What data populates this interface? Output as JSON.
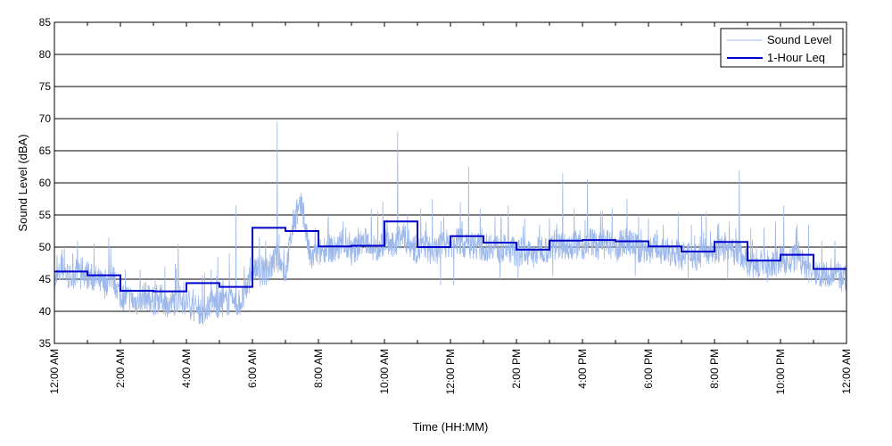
{
  "chart_data": {
    "type": "line",
    "title": "",
    "xlabel": "Time (HH:MM)",
    "ylabel": "Sound Level (dBA)",
    "ylim": [
      35,
      85
    ],
    "xlim": [
      0,
      24
    ],
    "yticks": [
      35,
      40,
      45,
      50,
      55,
      60,
      65,
      70,
      75,
      80,
      85
    ],
    "xticks": [
      {
        "hour": 0,
        "label": "12:00 AM"
      },
      {
        "hour": 2,
        "label": "2:00 AM"
      },
      {
        "hour": 4,
        "label": "4:00 AM"
      },
      {
        "hour": 6,
        "label": "6:00 AM"
      },
      {
        "hour": 8,
        "label": "8:00 AM"
      },
      {
        "hour": 10,
        "label": "10:00 AM"
      },
      {
        "hour": 12,
        "label": "12:00 PM"
      },
      {
        "hour": 14,
        "label": "2:00 PM"
      },
      {
        "hour": 16,
        "label": "4:00 PM"
      },
      {
        "hour": 18,
        "label": "6:00 PM"
      },
      {
        "hour": 20,
        "label": "8:00 PM"
      },
      {
        "hour": 22,
        "label": "10:00 PM"
      },
      {
        "hour": 24,
        "label": "12:00 AM"
      }
    ],
    "minor_xticks_hours": [
      1,
      3,
      5,
      7,
      9,
      11,
      13,
      15,
      17,
      19,
      21,
      23
    ],
    "grid": {
      "y": true,
      "x": false
    },
    "legend": {
      "placement": "top-right"
    },
    "series": [
      {
        "name": "Sound Level",
        "color": "#9db8ea",
        "style": "thin-line",
        "points": [
          [
            0.0,
            44.5
          ],
          [
            0.25,
            46.5
          ],
          [
            0.5,
            45.0
          ],
          [
            0.75,
            47.0
          ],
          [
            1.0,
            45.5
          ],
          [
            1.25,
            45.0
          ],
          [
            1.5,
            44.0
          ],
          [
            1.75,
            45.5
          ],
          [
            2.0,
            42.5
          ],
          [
            2.25,
            42.0
          ],
          [
            2.5,
            41.5
          ],
          [
            2.75,
            42.5
          ],
          [
            3.0,
            41.5
          ],
          [
            3.25,
            42.0
          ],
          [
            3.5,
            41.0
          ],
          [
            3.75,
            42.0
          ],
          [
            4.0,
            41.5
          ],
          [
            4.25,
            40.5
          ],
          [
            4.5,
            40.0
          ],
          [
            4.75,
            41.5
          ],
          [
            5.0,
            41.0
          ],
          [
            5.25,
            41.5
          ],
          [
            5.5,
            41.0
          ],
          [
            5.75,
            42.0
          ],
          [
            6.0,
            47.0
          ],
          [
            6.25,
            46.0
          ],
          [
            6.5,
            46.5
          ],
          [
            6.75,
            48.5
          ],
          [
            7.0,
            46.0
          ],
          [
            7.25,
            54.0
          ],
          [
            7.5,
            56.5
          ],
          [
            7.75,
            48.0
          ],
          [
            8.0,
            49.0
          ],
          [
            8.25,
            50.0
          ],
          [
            8.5,
            49.5
          ],
          [
            8.75,
            50.5
          ],
          [
            9.0,
            49.0
          ],
          [
            9.25,
            50.5
          ],
          [
            9.5,
            51.0
          ],
          [
            9.75,
            49.5
          ],
          [
            10.0,
            51.0
          ],
          [
            10.25,
            50.0
          ],
          [
            10.5,
            52.0
          ],
          [
            10.75,
            50.5
          ],
          [
            11.0,
            49.5
          ],
          [
            11.25,
            50.0
          ],
          [
            11.5,
            49.0
          ],
          [
            11.75,
            50.5
          ],
          [
            12.0,
            50.5
          ],
          [
            12.25,
            51.0
          ],
          [
            12.5,
            50.0
          ],
          [
            12.75,
            50.5
          ],
          [
            13.0,
            49.5
          ],
          [
            13.25,
            50.5
          ],
          [
            13.5,
            49.5
          ],
          [
            13.75,
            50.0
          ],
          [
            14.0,
            49.0
          ],
          [
            14.25,
            49.5
          ],
          [
            14.5,
            48.5
          ],
          [
            14.75,
            50.0
          ],
          [
            15.0,
            49.5
          ],
          [
            15.25,
            50.5
          ],
          [
            15.5,
            50.0
          ],
          [
            15.75,
            50.5
          ],
          [
            16.0,
            50.0
          ],
          [
            16.25,
            51.0
          ],
          [
            16.5,
            50.0
          ],
          [
            16.75,
            50.5
          ],
          [
            17.0,
            49.5
          ],
          [
            17.25,
            51.0
          ],
          [
            17.5,
            50.5
          ],
          [
            17.75,
            49.5
          ],
          [
            18.0,
            49.5
          ],
          [
            18.25,
            50.0
          ],
          [
            18.5,
            49.0
          ],
          [
            18.75,
            49.5
          ],
          [
            19.0,
            48.5
          ],
          [
            19.25,
            49.0
          ],
          [
            19.5,
            48.5
          ],
          [
            19.75,
            49.5
          ],
          [
            20.0,
            49.5
          ],
          [
            20.25,
            50.0
          ],
          [
            20.5,
            49.0
          ],
          [
            20.75,
            49.5
          ],
          [
            21.0,
            47.5
          ],
          [
            21.25,
            47.0
          ],
          [
            21.5,
            47.5
          ],
          [
            21.75,
            47.0
          ],
          [
            22.0,
            48.0
          ],
          [
            22.25,
            47.5
          ],
          [
            22.5,
            48.5
          ],
          [
            22.75,
            47.0
          ],
          [
            23.0,
            45.5
          ],
          [
            23.25,
            46.0
          ],
          [
            23.5,
            45.0
          ],
          [
            23.75,
            45.5
          ],
          [
            24.0,
            45.0
          ]
        ],
        "peaks": [
          [
            0.3,
            50.0
          ],
          [
            0.7,
            51.0
          ],
          [
            1.2,
            50.5
          ],
          [
            1.65,
            51.5
          ],
          [
            2.15,
            46.5
          ],
          [
            2.6,
            46.5
          ],
          [
            3.05,
            45.0
          ],
          [
            3.35,
            47.0
          ],
          [
            3.75,
            50.5
          ],
          [
            4.2,
            43.5
          ],
          [
            4.55,
            46.0
          ],
          [
            4.75,
            46.5
          ],
          [
            4.95,
            48.5
          ],
          [
            5.3,
            49.0
          ],
          [
            5.5,
            56.5
          ],
          [
            5.75,
            47.0
          ],
          [
            6.35,
            48.0
          ],
          [
            6.75,
            69.5
          ],
          [
            6.95,
            50.0
          ],
          [
            7.35,
            57.5
          ],
          [
            7.55,
            57.0
          ],
          [
            7.9,
            53.0
          ],
          [
            8.3,
            55.0
          ],
          [
            8.75,
            54.0
          ],
          [
            9.2,
            53.0
          ],
          [
            9.6,
            56.0
          ],
          [
            9.95,
            57.0
          ],
          [
            10.4,
            68.0
          ],
          [
            10.7,
            55.0
          ],
          [
            11.1,
            56.0
          ],
          [
            11.45,
            57.5
          ],
          [
            11.8,
            55.0
          ],
          [
            12.3,
            57.0
          ],
          [
            12.55,
            62.5
          ],
          [
            12.9,
            56.0
          ],
          [
            13.35,
            55.0
          ],
          [
            13.75,
            56.5
          ],
          [
            14.25,
            54.5
          ],
          [
            14.7,
            53.5
          ],
          [
            15.0,
            54.5
          ],
          [
            15.4,
            61.5
          ],
          [
            15.75,
            56.0
          ],
          [
            16.15,
            60.5
          ],
          [
            16.55,
            55.5
          ],
          [
            16.9,
            56.0
          ],
          [
            17.35,
            57.5
          ],
          [
            17.7,
            55.0
          ],
          [
            18.0,
            54.5
          ],
          [
            18.45,
            53.5
          ],
          [
            18.9,
            55.5
          ],
          [
            19.3,
            53.5
          ],
          [
            19.75,
            55.5
          ],
          [
            20.1,
            53.5
          ],
          [
            20.45,
            54.0
          ],
          [
            20.75,
            62.0
          ],
          [
            21.1,
            53.0
          ],
          [
            21.5,
            53.0
          ],
          [
            21.85,
            54.0
          ],
          [
            22.1,
            56.5
          ],
          [
            22.5,
            53.5
          ],
          [
            22.85,
            53.5
          ],
          [
            23.25,
            51.0
          ],
          [
            23.65,
            51.0
          ]
        ],
        "dips": [
          [
            0.8,
            43.5
          ],
          [
            2.4,
            40.5
          ],
          [
            3.4,
            40.0
          ],
          [
            4.45,
            39.5
          ],
          [
            5.6,
            40.0
          ],
          [
            11.7,
            44.0
          ],
          [
            12.1,
            44.0
          ],
          [
            13.5,
            45.0
          ],
          [
            14.05,
            45.0
          ],
          [
            15.1,
            45.5
          ],
          [
            17.6,
            45.5
          ],
          [
            19.2,
            45.0
          ],
          [
            20.4,
            45.0
          ],
          [
            21.6,
            44.5
          ],
          [
            23.85,
            43.0
          ]
        ]
      },
      {
        "name": "1-Hour Leq",
        "color": "#0000cc",
        "style": "step",
        "values": [
          46.2,
          45.6,
          43.2,
          43.1,
          44.4,
          43.8,
          53.0,
          52.5,
          50.1,
          50.2,
          54.0,
          50.0,
          51.7,
          50.7,
          49.6,
          51.0,
          51.1,
          50.9,
          50.1,
          49.3,
          50.8,
          47.9,
          48.8,
          46.6
        ]
      }
    ]
  }
}
